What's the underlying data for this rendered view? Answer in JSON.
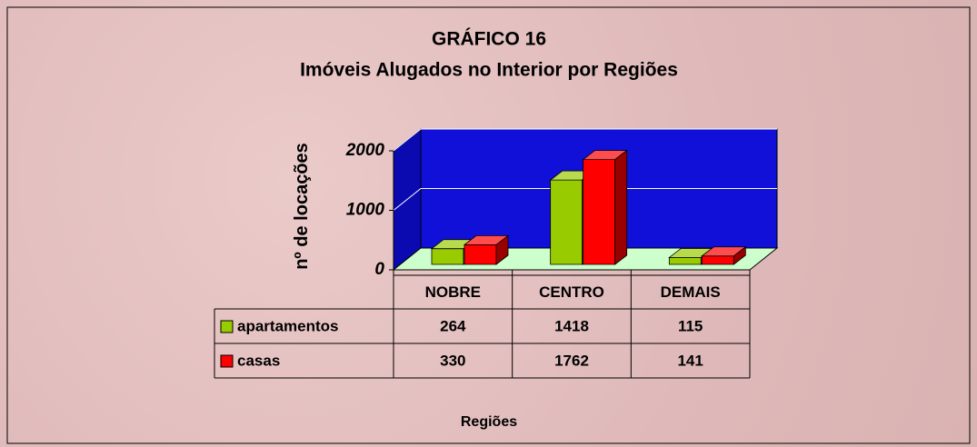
{
  "chart_data": {
    "type": "bar",
    "title": "GRÁFICO 16",
    "subtitle": "Imóveis Alugados no Interior por Regiões",
    "y_label": "nº de locações",
    "x_label": "Regiões",
    "categories": [
      "NOBRE",
      "CENTRO",
      "DEMAIS"
    ],
    "series": [
      {
        "name": "apartamentos",
        "color": "#99cc00",
        "values": [
          264,
          1418,
          115
        ]
      },
      {
        "name": "casas",
        "color": "#ff0000",
        "values": [
          330,
          1762,
          141
        ]
      }
    ],
    "ylim": [
      0,
      2000
    ],
    "yticks": [
      0,
      1000,
      2000
    ],
    "grid": true,
    "data_table": true
  }
}
